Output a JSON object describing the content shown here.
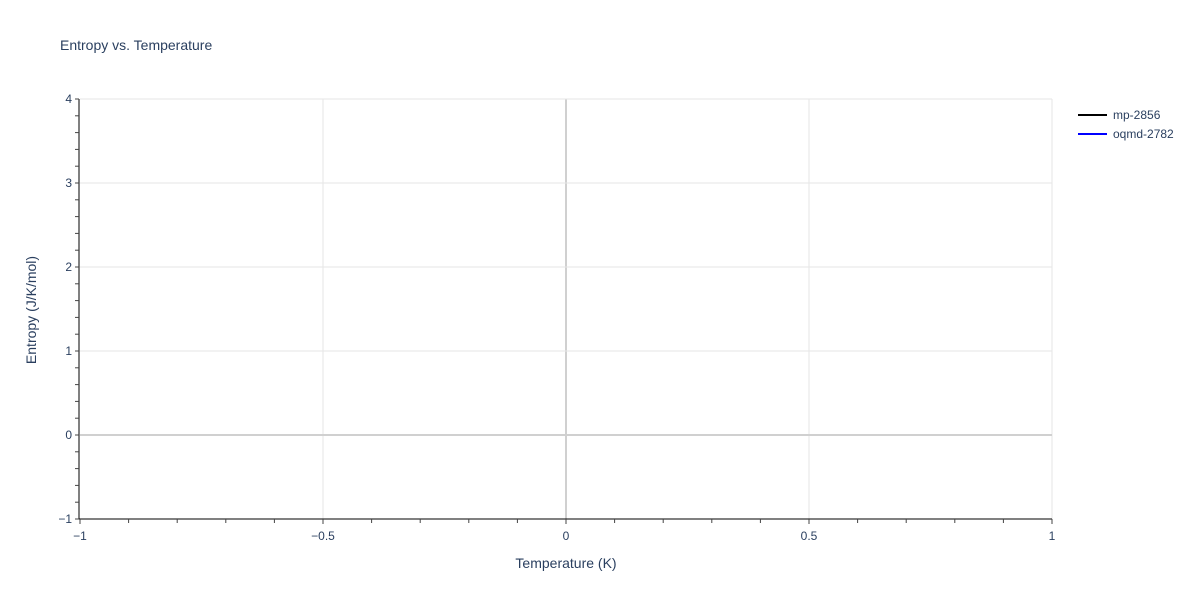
{
  "chart_data": {
    "type": "line",
    "title": "Entropy vs. Temperature",
    "xlabel": "Temperature (K)",
    "ylabel": "Entropy (J/K/mol)",
    "xlim": [
      -1,
      1
    ],
    "ylim": [
      -1,
      4
    ],
    "x_ticks": [
      -1,
      -0.5,
      0,
      0.5,
      1
    ],
    "x_tick_labels": [
      "−1",
      "−0.5",
      "0",
      "0.5",
      "1"
    ],
    "y_ticks": [
      -1,
      0,
      1,
      2,
      3,
      4
    ],
    "y_tick_labels": [
      "−1",
      "0",
      "1",
      "2",
      "3",
      "4"
    ],
    "grid": true,
    "legend_position": "top-right",
    "series": [
      {
        "name": "mp-2856",
        "color": "#000000",
        "x": [],
        "y": []
      },
      {
        "name": "oqmd-2782",
        "color": "#0000ff",
        "x": [],
        "y": []
      }
    ]
  }
}
